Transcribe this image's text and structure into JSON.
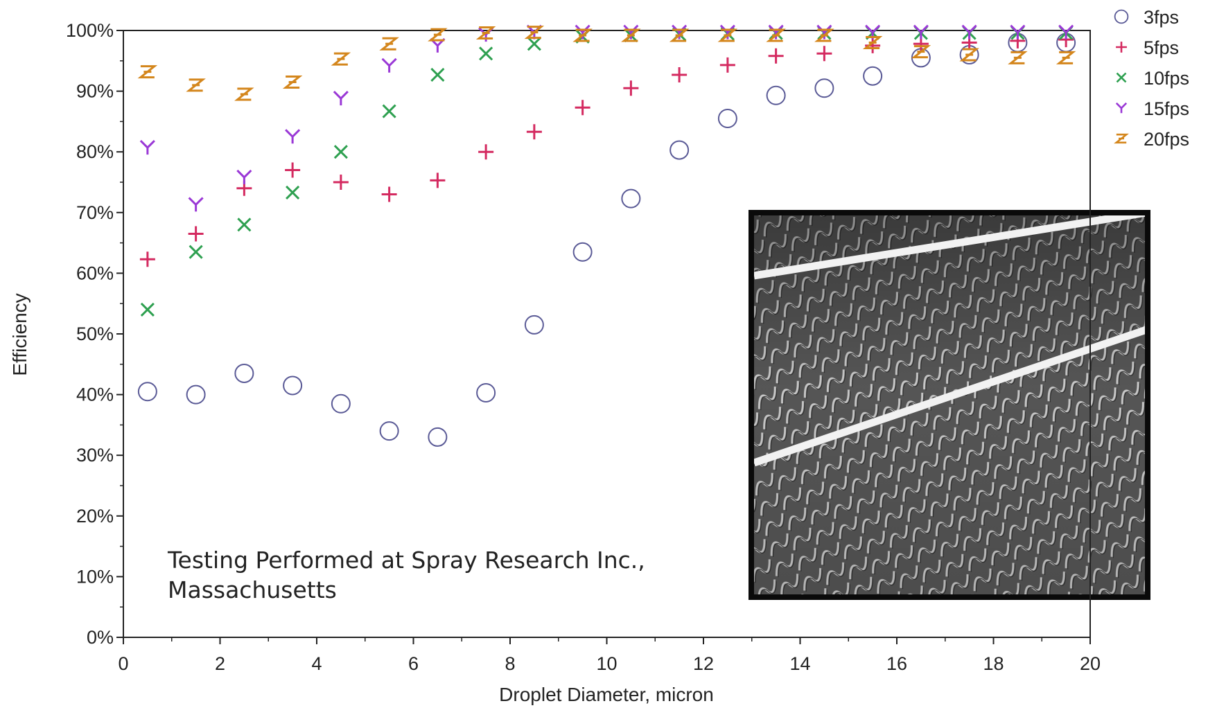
{
  "chart_data": {
    "type": "scatter",
    "xlabel": "Droplet Diameter, micron",
    "ylabel": "Efficiency",
    "xlim": [
      0,
      20
    ],
    "ylim": [
      0,
      100
    ],
    "x_ticks": [
      "0",
      "2",
      "4",
      "6",
      "8",
      "10",
      "12",
      "14",
      "16",
      "18",
      "20"
    ],
    "y_ticks": [
      "0%",
      "10%",
      "20%",
      "30%",
      "40%",
      "50%",
      "60%",
      "70%",
      "80%",
      "90%",
      "100%"
    ],
    "grid": false,
    "legend_position": "top-right-outside",
    "annotation": [
      "Testing Performed at Spray Research Inc.,",
      "Massachusetts"
    ],
    "inset_photo": "mist-eliminator-vane-blades",
    "x": [
      0.5,
      1.5,
      2.5,
      3.5,
      4.5,
      5.5,
      6.5,
      7.5,
      8.5,
      9.5,
      10.5,
      11.5,
      12.5,
      13.5,
      14.5,
      15.5,
      16.5,
      17.5,
      18.5,
      19.5
    ],
    "series": [
      {
        "name": "3fps",
        "marker": "circle",
        "color": "#5a5a96",
        "values": [
          40.5,
          40,
          43.5,
          41.5,
          38.5,
          34,
          33,
          40.3,
          51.5,
          63.5,
          72.3,
          80.3,
          85.5,
          89.3,
          90.5,
          92.5,
          95.5,
          96,
          98,
          98
        ]
      },
      {
        "name": "5fps",
        "marker": "plus",
        "color": "#d42a60",
        "values": [
          62.3,
          66.5,
          74,
          77,
          75,
          73,
          75.3,
          80,
          83.3,
          87.3,
          90.5,
          92.7,
          94.3,
          95.8,
          96.2,
          97.5,
          97.8,
          98,
          98.3,
          98.5
        ]
      },
      {
        "name": "10fps",
        "marker": "x",
        "color": "#2ea050",
        "values": [
          54,
          63.5,
          68,
          73.3,
          80,
          86.7,
          92.7,
          96.2,
          97.8,
          99,
          99.2,
          99.4,
          99.5,
          99.6,
          99.6,
          99.6,
          99.6,
          99.6,
          99.6,
          99.6
        ]
      },
      {
        "name": "15fps",
        "marker": "y",
        "color": "#9a38d6",
        "values": [
          80.7,
          71.3,
          75.8,
          82.5,
          88.8,
          94.2,
          97.5,
          99.3,
          99.7,
          99.7,
          99.7,
          99.7,
          99.7,
          99.7,
          99.7,
          99.7,
          99.7,
          99.7,
          99.7,
          99.7
        ]
      },
      {
        "name": "20fps",
        "marker": "z",
        "color": "#d4861c",
        "values": [
          93.2,
          91,
          89.5,
          91.5,
          95.3,
          97.8,
          99.3,
          99.6,
          99.7,
          99.2,
          99.2,
          99.2,
          99.2,
          99.2,
          99.2,
          98,
          96.5,
          96,
          95.5,
          95.5
        ]
      }
    ]
  }
}
